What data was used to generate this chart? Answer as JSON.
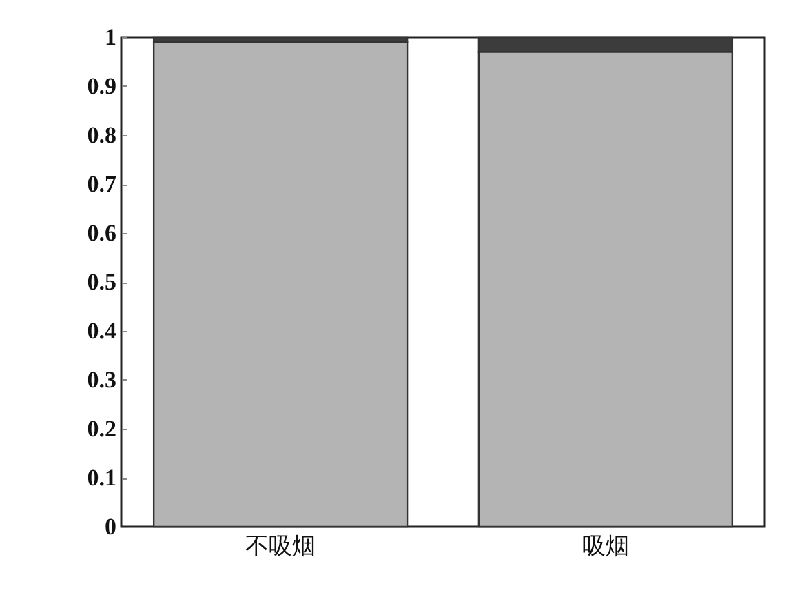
{
  "chart_data": {
    "type": "bar",
    "stacked": true,
    "categories": [
      "不吸烟",
      "吸烟"
    ],
    "series": [
      {
        "color": "#b4b4b4",
        "values": [
          0.99,
          0.97
        ]
      },
      {
        "color": "#3c3c3c",
        "values": [
          0.01,
          0.03
        ]
      }
    ],
    "ylim": [
      0,
      1
    ],
    "yticks": [
      0,
      0.1,
      0.2,
      0.3,
      0.4,
      0.5,
      0.6,
      0.7,
      0.8,
      0.9,
      1
    ],
    "grid": false,
    "legend": false
  }
}
